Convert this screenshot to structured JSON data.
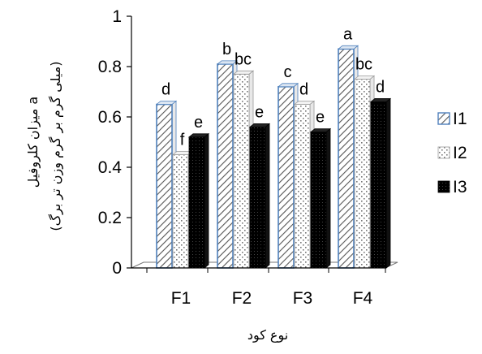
{
  "chart_data": {
    "type": "bar",
    "title": "",
    "xlabel": "نوع کود",
    "ylabel_line1": "میزان کلروفیل a",
    "ylabel_line2": "(میلی گرم بر گرم وزن تر برگ)",
    "ylim": [
      0,
      1
    ],
    "yticks": [
      "0",
      "0.2",
      "0.4",
      "0.6",
      "0.8",
      "1"
    ],
    "categories": [
      "F1",
      "F2",
      "F3",
      "F4"
    ],
    "series": [
      {
        "name": "I1",
        "values": [
          0.65,
          0.81,
          0.72,
          0.87
        ],
        "letters": [
          "d",
          "b",
          "c",
          "a"
        ],
        "pattern": "hatch",
        "color": "#4f81bd"
      },
      {
        "name": "I2",
        "values": [
          0.45,
          0.77,
          0.65,
          0.75
        ],
        "letters": [
          "f",
          "bc",
          "d",
          "bc"
        ],
        "pattern": "dots",
        "color": "#ffffff"
      },
      {
        "name": "I3",
        "values": [
          0.52,
          0.56,
          0.54,
          0.66
        ],
        "letters": [
          "e",
          "e",
          "e",
          "d"
        ],
        "pattern": "dense",
        "color": "#000000"
      }
    ],
    "legend_position": "right",
    "grid": false
  }
}
